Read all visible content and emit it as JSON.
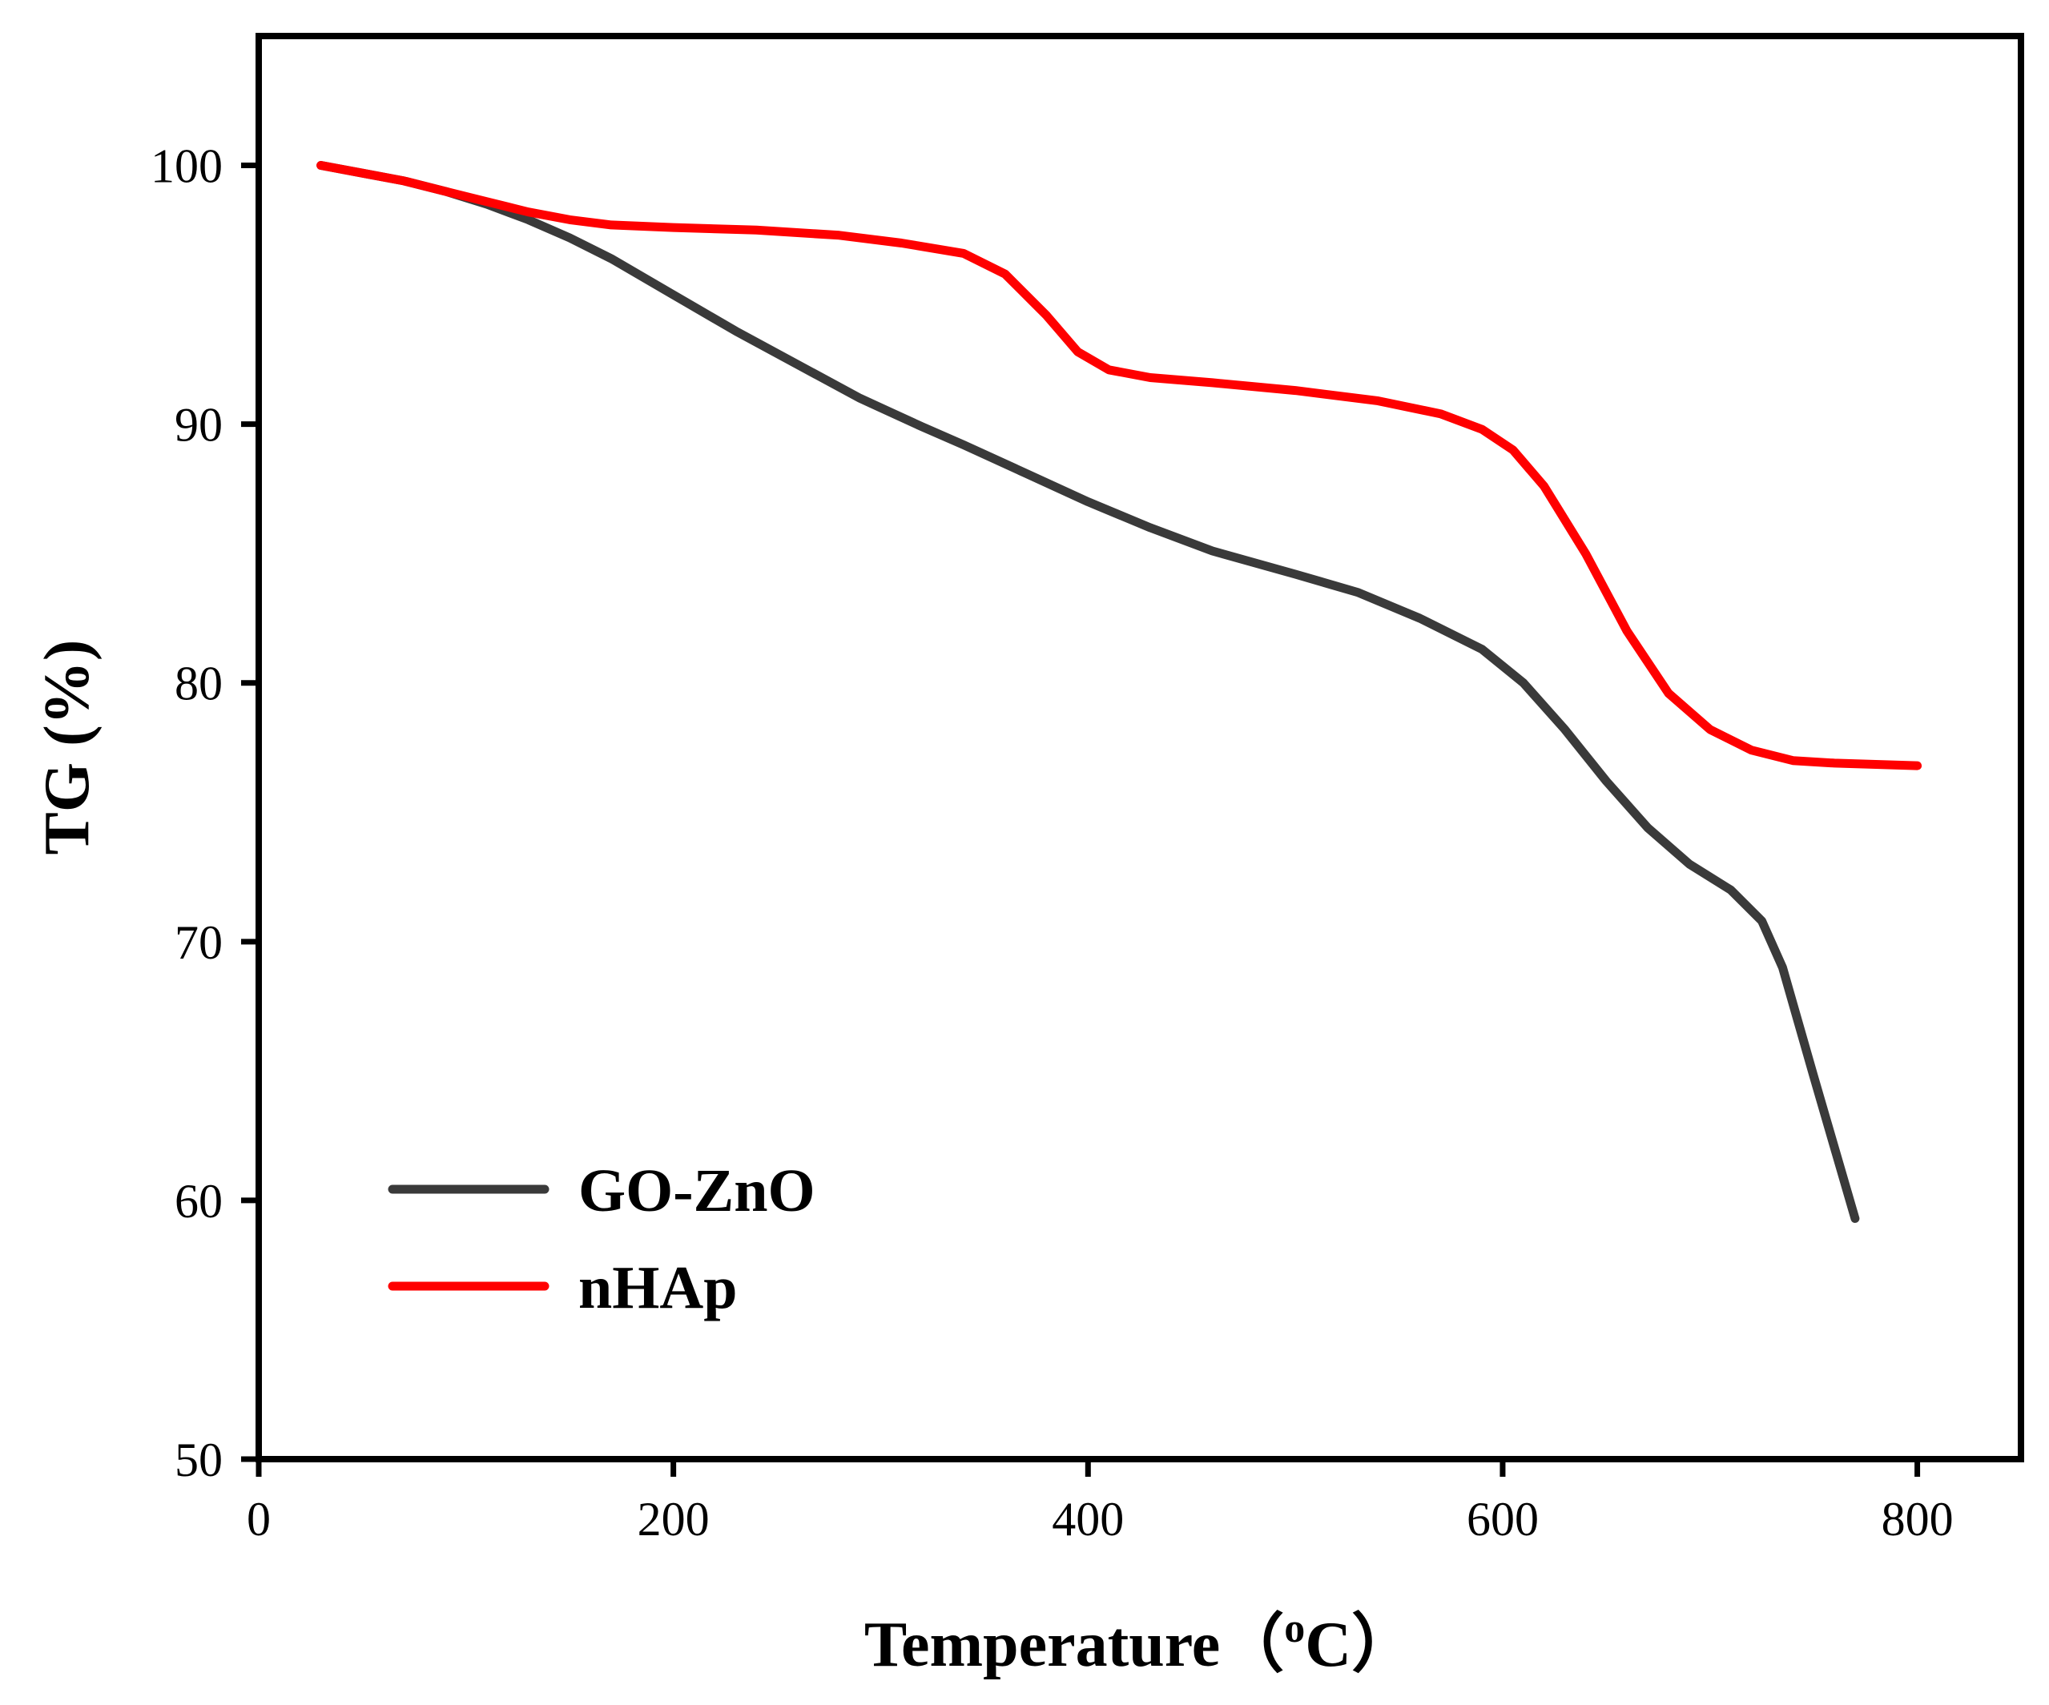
{
  "chart_data": {
    "type": "line",
    "title": "",
    "xlabel": "Temperature（",
    "xlabel_unit_sup": "o",
    "xlabel_unit": "C）",
    "ylabel": "TG (%)",
    "xlim": [
      0,
      850
    ],
    "ylim": [
      50,
      105
    ],
    "x_ticks": [
      0,
      200,
      400,
      600,
      800
    ],
    "x_tick_labels": [
      "0",
      "200",
      "400",
      "600",
      "800"
    ],
    "y_ticks": [
      50,
      60,
      70,
      80,
      90,
      100
    ],
    "y_tick_labels": [
      "50",
      "60",
      "70",
      "80",
      "90",
      "100"
    ],
    "grid": false,
    "legend_position": "bottom-left",
    "series": [
      {
        "name": "GO-ZnO",
        "color": "#3a3a3a",
        "x": [
          30,
          50,
          70,
          90,
          110,
          130,
          150,
          170,
          200,
          230,
          260,
          290,
          320,
          340,
          370,
          400,
          430,
          460,
          500,
          530,
          560,
          590,
          610,
          630,
          650,
          670,
          690,
          710,
          725,
          735,
          750,
          770
        ],
        "y": [
          100,
          99.7,
          99.4,
          99.0,
          98.5,
          97.9,
          97.2,
          96.4,
          95.0,
          93.6,
          92.3,
          91.0,
          89.9,
          89.2,
          88.1,
          87.0,
          86.0,
          85.1,
          84.2,
          83.5,
          82.5,
          81.3,
          80.0,
          78.2,
          76.2,
          74.4,
          73.0,
          72.0,
          70.8,
          69.0,
          64.8,
          59.3
        ]
      },
      {
        "name": "nHAp",
        "color": "#ff0000",
        "x": [
          30,
          50,
          70,
          90,
          110,
          130,
          150,
          170,
          200,
          240,
          280,
          310,
          340,
          360,
          380,
          395,
          410,
          430,
          460,
          500,
          540,
          570,
          590,
          605,
          620,
          640,
          660,
          680,
          700,
          720,
          740,
          760,
          780,
          800
        ],
        "y": [
          100,
          99.7,
          99.4,
          99.0,
          98.6,
          98.2,
          97.9,
          97.7,
          97.6,
          97.5,
          97.3,
          97.0,
          96.6,
          95.8,
          94.2,
          92.8,
          92.1,
          91.8,
          91.6,
          91.3,
          90.9,
          90.4,
          89.8,
          89.0,
          87.6,
          85.0,
          82.0,
          79.6,
          78.2,
          77.4,
          77.0,
          76.9,
          76.85,
          76.8
        ]
      }
    ]
  }
}
